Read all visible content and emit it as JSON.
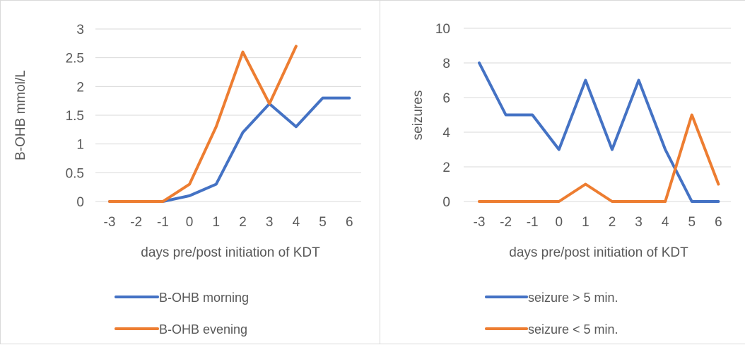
{
  "chart_data": [
    {
      "type": "line",
      "title": "",
      "xlabel": "days pre/post initiation of KDT",
      "ylabel": "B-OHB mmol/L",
      "categories": [
        "-3",
        "-2",
        "-1",
        "0",
        "1",
        "2",
        "3",
        "4",
        "5",
        "6"
      ],
      "ylim": [
        0,
        3
      ],
      "yticks": [
        "0",
        "0.5",
        "1",
        "1.5",
        "2",
        "2.5",
        "3"
      ],
      "grid": true,
      "legend": "bottom",
      "series": [
        {
          "name": "B-OHB morning",
          "color": "#4472C4",
          "values": [
            0,
            0,
            0,
            0.1,
            0.3,
            1.2,
            1.7,
            1.3,
            1.8,
            1.8
          ]
        },
        {
          "name": "B-OHB evening",
          "color": "#ED7D31",
          "values": [
            0,
            0,
            0,
            0.3,
            1.3,
            2.6,
            1.7,
            2.7,
            null,
            null
          ]
        }
      ]
    },
    {
      "type": "line",
      "title": "",
      "xlabel": "days pre/post initiation of KDT",
      "ylabel": "seizures",
      "categories": [
        "-3",
        "-2",
        "-1",
        "0",
        "1",
        "2",
        "3",
        "4",
        "5",
        "6"
      ],
      "ylim": [
        0,
        10
      ],
      "yticks": [
        "0",
        "2",
        "4",
        "6",
        "8",
        "10"
      ],
      "grid": true,
      "legend": "bottom",
      "series": [
        {
          "name": "seizure > 5 min.",
          "color": "#4472C4",
          "values": [
            8,
            5,
            5,
            3,
            7,
            3,
            7,
            3,
            0,
            0
          ]
        },
        {
          "name": "seizure < 5 min.",
          "color": "#ED7D31",
          "values": [
            0,
            0,
            0,
            0,
            1,
            0,
            0,
            0,
            5,
            1
          ]
        }
      ]
    }
  ]
}
